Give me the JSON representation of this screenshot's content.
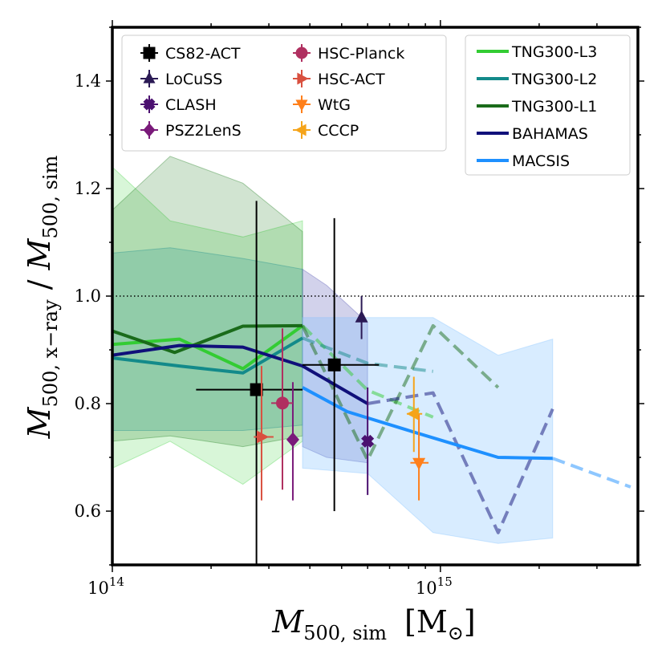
{
  "chart_data": {
    "type": "line",
    "xscale": "log",
    "xlim": [
      100000000000000.0,
      4000000000000000.0
    ],
    "ylim": [
      0.5,
      1.5
    ],
    "grid": false,
    "xlabel_main": "M",
    "xlabel_sub": "500, sim",
    "xlabel_unit_open": "[M",
    "xlabel_unit_sym": "⊙",
    "xlabel_unit_close": "]",
    "ylabel_main": "M",
    "ylabel_sub1": "500, x−ray",
    "ylabel_slash": " / ",
    "ylabel_sub2": "500, sim",
    "xticks": [
      {
        "value": 100000000000000.0,
        "base": "10",
        "exp": "14"
      },
      {
        "value": 1000000000000000.0,
        "base": "10",
        "exp": "15"
      }
    ],
    "yticks": [
      {
        "value": 0.6,
        "label": "0.6"
      },
      {
        "value": 0.8,
        "label": "0.8"
      },
      {
        "value": 1.0,
        "label": "1.0"
      },
      {
        "value": 1.2,
        "label": "1.2"
      },
      {
        "value": 1.4,
        "label": "1.4"
      }
    ],
    "reference_line": {
      "y": 1.0,
      "style": "dotted",
      "color": "#000000"
    },
    "bands": [
      {
        "name": "TNG300-L3 scatter",
        "color": "#3dd13d",
        "opacity": 0.2,
        "x": [
          100000000000000.0,
          150000000000000.0,
          250000000000000.0,
          380000000000000.0
        ],
        "upper": [
          1.24,
          1.14,
          1.11,
          1.14
        ],
        "lower": [
          0.68,
          0.73,
          0.65,
          0.73
        ]
      },
      {
        "name": "TNG300-L1 scatter",
        "color": "#1a7a1a",
        "opacity": 0.2,
        "x": [
          100000000000000.0,
          150000000000000.0,
          250000000000000.0,
          380000000000000.0
        ],
        "upper": [
          1.16,
          1.26,
          1.21,
          1.12
        ],
        "lower": [
          0.73,
          0.74,
          0.72,
          0.74
        ]
      },
      {
        "name": "TNG300-L2 scatter",
        "color": "#138a8a",
        "opacity": 0.2,
        "x": [
          100000000000000.0,
          150000000000000.0,
          250000000000000.0,
          380000000000000.0
        ],
        "upper": [
          1.08,
          1.09,
          1.07,
          1.05
        ],
        "lower": [
          0.75,
          0.75,
          0.75,
          0.76
        ]
      },
      {
        "name": "BAHAMAS scatter",
        "color": "#4a4ab0",
        "opacity": 0.25,
        "x": [
          380000000000000.0,
          450000000000000.0,
          600000000000000.0
        ],
        "upper": [
          1.05,
          1.02,
          0.95
        ],
        "lower": [
          0.72,
          0.7,
          0.69
        ]
      },
      {
        "name": "MACSIS scatter",
        "color": "#7fbfff",
        "opacity": 0.3,
        "x": [
          380000000000000.0,
          600000000000000.0,
          950000000000000.0,
          1500000000000000.0,
          2200000000000000.0
        ],
        "upper": [
          0.96,
          0.96,
          0.96,
          0.89,
          0.92
        ],
        "lower": [
          0.68,
          0.67,
          0.56,
          0.54,
          0.55
        ]
      }
    ],
    "series": [
      {
        "name": "TNG300-L3",
        "color": "#33cc33",
        "width": 4,
        "solid": {
          "x": [
            100000000000000.0,
            160000000000000.0,
            250000000000000.0,
            380000000000000.0
          ],
          "y": [
            0.91,
            0.92,
            0.865,
            0.945
          ]
        },
        "dashed": {
          "x": [
            380000000000000.0,
            600000000000000.0,
            950000000000000.0
          ],
          "y": [
            0.945,
            0.825,
            0.775
          ]
        }
      },
      {
        "name": "TNG300-L2",
        "color": "#138a8a",
        "width": 4,
        "solid": {
          "x": [
            100000000000000.0,
            160000000000000.0,
            250000000000000.0,
            380000000000000.0
          ],
          "y": [
            0.885,
            0.87,
            0.857,
            0.922
          ]
        },
        "dashed": {
          "x": [
            380000000000000.0,
            600000000000000.0,
            950000000000000.0
          ],
          "y": [
            0.922,
            0.875,
            0.86
          ]
        }
      },
      {
        "name": "TNG300-L1",
        "color": "#1a6b1a",
        "width": 4,
        "solid": {
          "x": [
            100000000000000.0,
            155000000000000.0,
            250000000000000.0,
            380000000000000.0
          ],
          "y": [
            0.935,
            0.895,
            0.944,
            0.945
          ]
        },
        "dashed": {
          "x": [
            380000000000000.0,
            600000000000000.0,
            950000000000000.0,
            1500000000000000.0
          ],
          "y": [
            0.945,
            0.695,
            0.945,
            0.83
          ]
        }
      },
      {
        "name": "BAHAMAS",
        "color": "#10107a",
        "width": 4,
        "solid": {
          "x": [
            100000000000000.0,
            160000000000000.0,
            250000000000000.0,
            380000000000000.0,
            600000000000000.0
          ],
          "y": [
            0.89,
            0.908,
            0.905,
            0.87,
            0.8
          ]
        },
        "dashed": {
          "x": [
            600000000000000.0,
            950000000000000.0,
            1500000000000000.0,
            2200000000000000.0
          ],
          "y": [
            0.8,
            0.82,
            0.56,
            0.79
          ]
        }
      },
      {
        "name": "MACSIS",
        "color": "#1e90ff",
        "width": 4,
        "solid": {
          "x": [
            380000000000000.0,
            520000000000000.0,
            820000000000000.0,
            1500000000000000.0,
            2200000000000000.0
          ],
          "y": [
            0.83,
            0.785,
            0.748,
            0.7,
            0.698
          ]
        },
        "dashed": {
          "x": [
            2200000000000000.0,
            3800000000000000.0
          ],
          "y": [
            0.698,
            0.645
          ]
        }
      }
    ],
    "points": [
      {
        "name": "CS82-ACT",
        "marker": "square",
        "color": "#000000",
        "x": 275000000000000.0,
        "y": 0.826,
        "xerr": [
          180000000000000.0,
          380000000000000.0
        ],
        "yerr": [
          0.5,
          1.177
        ]
      },
      {
        "name": "CS82-ACT",
        "marker": "square",
        "color": "#000000",
        "x": 475000000000000.0,
        "y": 0.872,
        "xerr": [
          380000000000000.0,
          650000000000000.0
        ],
        "yerr": [
          0.6,
          1.145
        ]
      },
      {
        "name": "LoCuSS",
        "marker": "triangle-up",
        "color": "#2b1a55",
        "x": 575000000000000.0,
        "y": 0.96,
        "xerr": null,
        "yerr": [
          0.92,
          1.0
        ]
      },
      {
        "name": "CLASH",
        "marker": "cross",
        "color": "#4b1070",
        "x": 600000000000000.0,
        "y": 0.73,
        "xerr": null,
        "yerr": [
          0.63,
          0.83
        ]
      },
      {
        "name": "PSZ2LenS",
        "marker": "diamond",
        "color": "#7a1a7a",
        "x": 355000000000000.0,
        "y": 0.733,
        "xerr": null,
        "yerr": [
          0.62,
          0.84
        ]
      },
      {
        "name": "HSC-Planck",
        "marker": "circle",
        "color": "#b03060",
        "x": 330000000000000.0,
        "y": 0.801,
        "xerr": [
          305000000000000.0,
          355000000000000.0
        ],
        "yerr": [
          0.64,
          0.94
        ]
      },
      {
        "name": "HSC-ACT",
        "marker": "triangle-right",
        "color": "#d9503f",
        "x": 285000000000000.0,
        "y": 0.738,
        "xerr": [
          270000000000000.0,
          310000000000000.0
        ],
        "yerr": [
          0.62,
          0.87
        ]
      },
      {
        "name": "WtG",
        "marker": "triangle-down",
        "color": "#ff7f1a",
        "x": 860000000000000.0,
        "y": 0.69,
        "xerr": [
          810000000000000.0,
          920000000000000.0
        ],
        "yerr": [
          0.62,
          0.78
        ]
      },
      {
        "name": "CCCP",
        "marker": "triangle-left",
        "color": "#f5a41a",
        "x": 830000000000000.0,
        "y": 0.781,
        "xerr": [
          790000000000000.0,
          880000000000000.0
        ],
        "yerr": [
          0.71,
          0.85
        ]
      }
    ],
    "legend_left": {
      "placement": "top-left",
      "col1": [
        {
          "label": "CS82-ACT",
          "marker": "square",
          "color": "#000000"
        },
        {
          "label": "LoCuSS",
          "marker": "triangle-up",
          "color": "#2b1a55"
        },
        {
          "label": "CLASH",
          "marker": "cross",
          "color": "#4b1070"
        },
        {
          "label": "PSZ2LenS",
          "marker": "diamond",
          "color": "#7a1a7a"
        }
      ],
      "col2": [
        {
          "label": "HSC-Planck",
          "marker": "circle",
          "color": "#b03060"
        },
        {
          "label": "HSC-ACT",
          "marker": "triangle-right",
          "color": "#d9503f"
        },
        {
          "label": "WtG",
          "marker": "triangle-down",
          "color": "#ff7f1a"
        },
        {
          "label": "CCCP",
          "marker": "triangle-left",
          "color": "#f5a41a"
        }
      ]
    },
    "legend_right": {
      "placement": "top-right",
      "entries": [
        {
          "label": "TNG300-L3",
          "color": "#33cc33"
        },
        {
          "label": "TNG300-L2",
          "color": "#138a8a"
        },
        {
          "label": "TNG300-L1",
          "color": "#1a6b1a"
        },
        {
          "label": "BAHAMAS",
          "color": "#10107a"
        },
        {
          "label": "MACSIS",
          "color": "#1e90ff"
        }
      ]
    }
  }
}
